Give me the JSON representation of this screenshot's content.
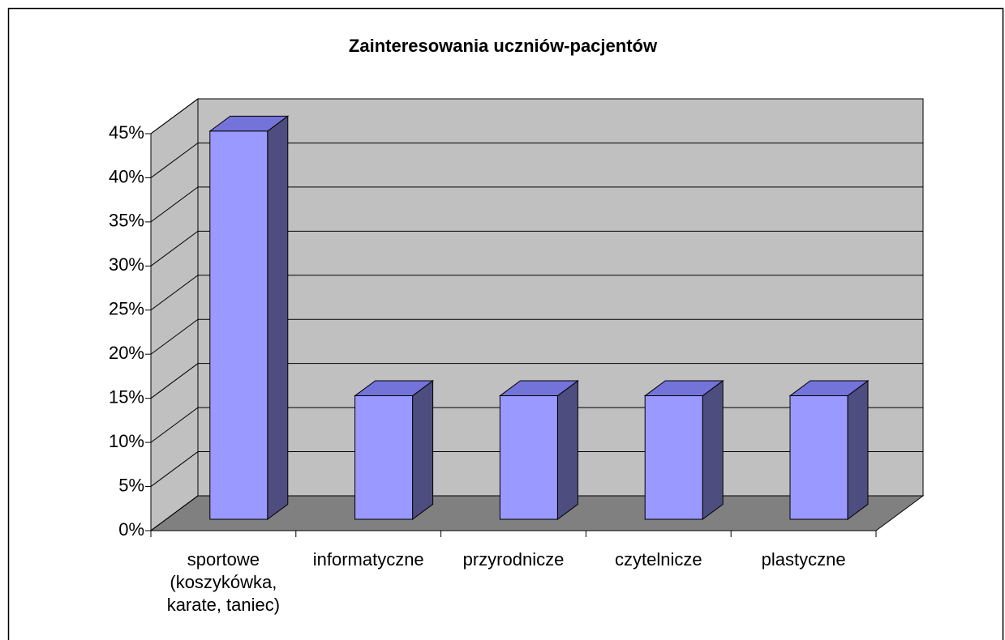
{
  "chart_data": {
    "type": "bar",
    "title": "Zainteresowania uczniów-pacjentów",
    "categories": [
      "sportowe (koszykówka, karate, taniec)",
      "informatyczne",
      "przyrodnicze",
      "czytelnicze",
      "plastyczne"
    ],
    "values": [
      44,
      14,
      14,
      14,
      14
    ],
    "color": "#9999ff",
    "ylim": [
      0,
      45
    ],
    "yticks": [
      {
        "value": 0,
        "label": "0%"
      },
      {
        "value": 5,
        "label": "5%"
      },
      {
        "value": 10,
        "label": "10%"
      },
      {
        "value": 15,
        "label": "15%"
      },
      {
        "value": 20,
        "label": "20%"
      },
      {
        "value": 25,
        "label": "25%"
      },
      {
        "value": 30,
        "label": "30%"
      },
      {
        "value": 35,
        "label": "35%"
      },
      {
        "value": 40,
        "label": "40%"
      },
      {
        "value": 45,
        "label": "45%"
      }
    ],
    "grid": true
  }
}
